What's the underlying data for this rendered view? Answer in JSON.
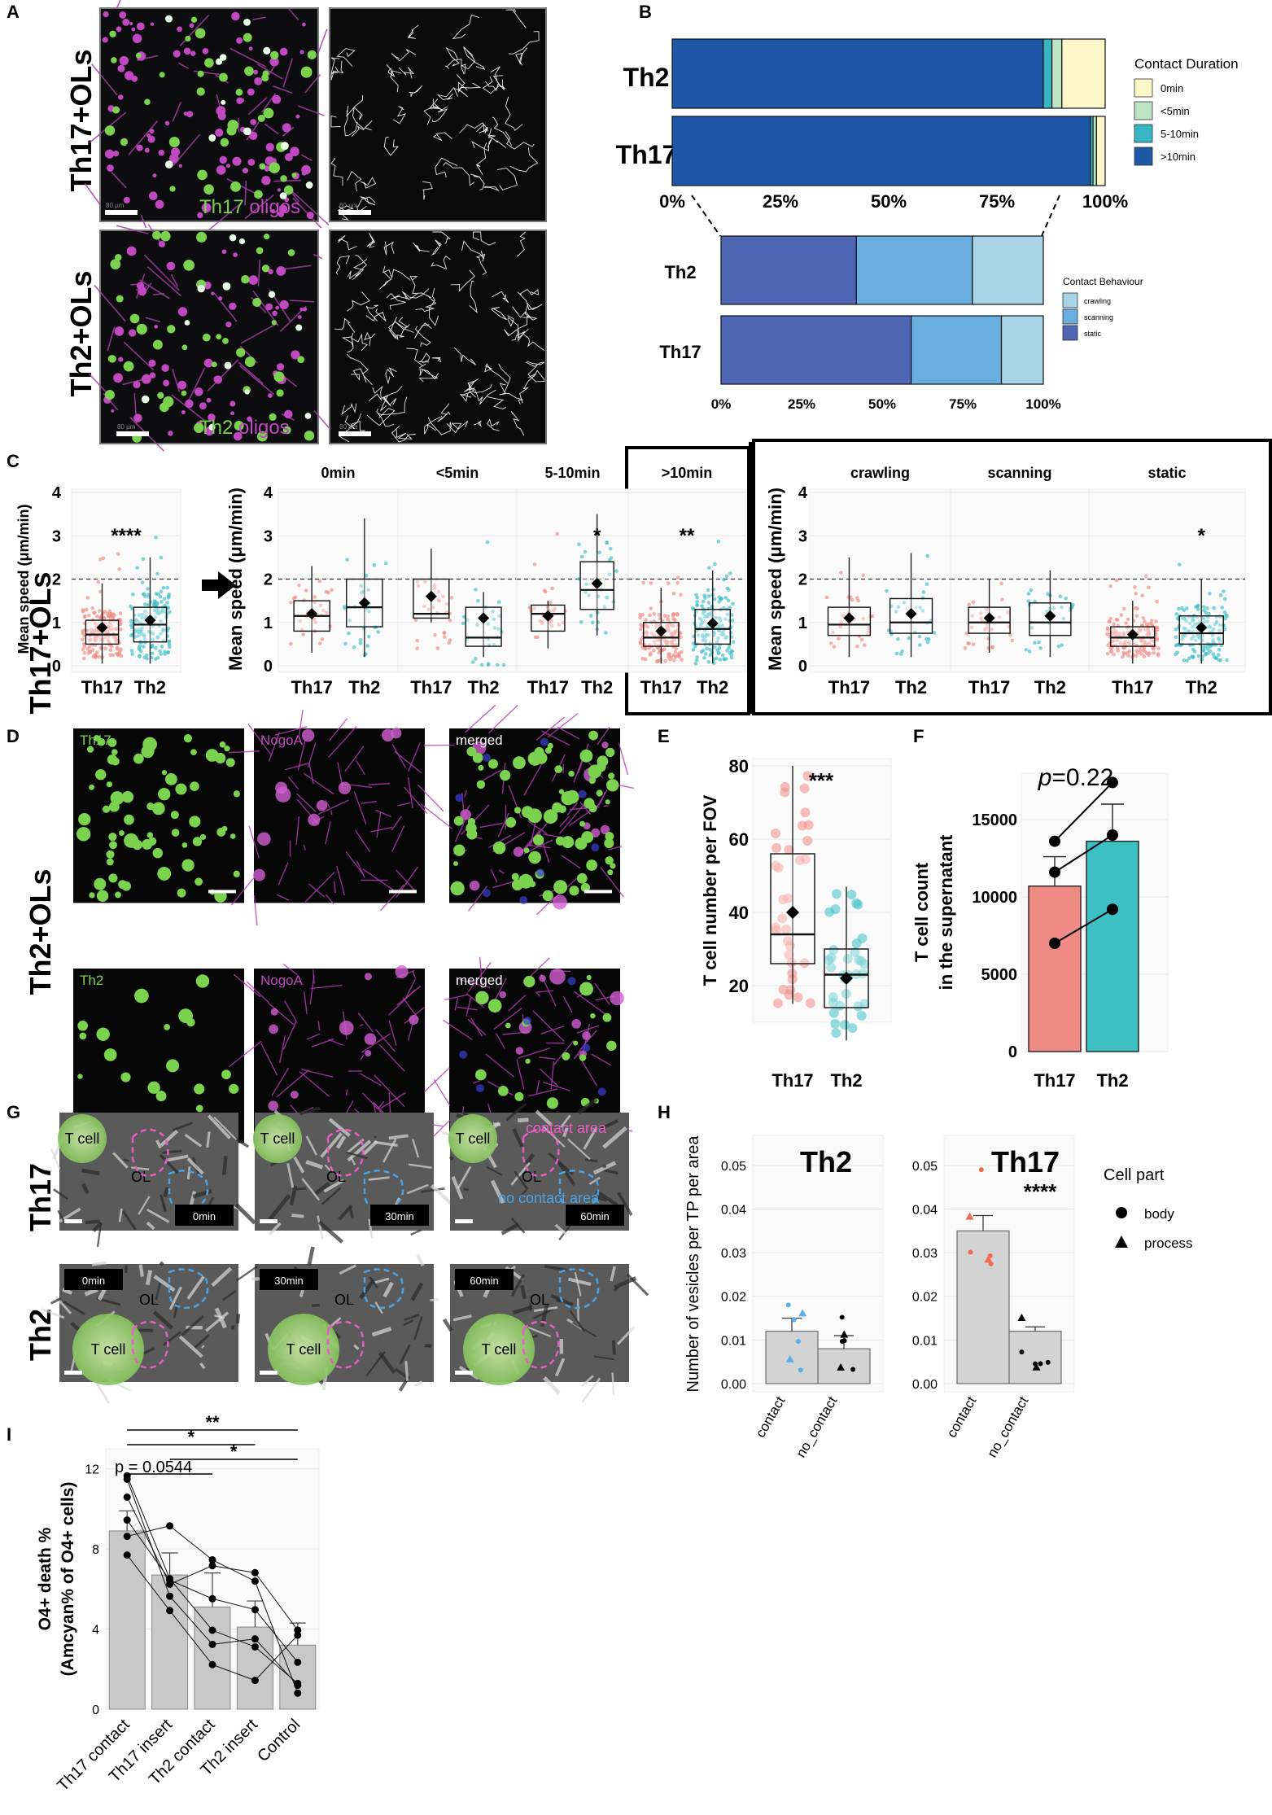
{
  "panel_letters": {
    "A": "A",
    "B": "B",
    "C": "C",
    "D": "D",
    "E": "E",
    "F": "F",
    "G": "G",
    "H": "H",
    "I": "I"
  },
  "panel_a": {
    "row_labels": [
      "Th17+OLs",
      "Th2+OLs"
    ],
    "captions": [
      {
        "cell": "Th17",
        "oligo": " oligos"
      },
      {
        "cell": "Th2",
        "oligo": " oligos"
      }
    ],
    "scalebar_texts": [
      "80 μm",
      "80 μm",
      "80 μm",
      "80 μm"
    ]
  },
  "colors": {
    "th17": "#f08a84",
    "th2": "#3dbfc4",
    "magenta": "#c048c0",
    "green": "#7ad24e",
    "dur0": "#fbf7c8",
    "dur5": "#bfe3c5",
    "dur510": "#38b6c4",
    "dur10": "#1f57a8",
    "crawl": "#a9d3e6",
    "scan": "#6aaee0",
    "static": "#4e66b4"
  },
  "chart_data": [
    {
      "id": "B-duration",
      "type": "bar",
      "orientation": "horizontal-stacked-percent",
      "categories": [
        "Th2",
        "Th17"
      ],
      "series": [
        {
          "name": ">10min",
          "values": [
            85.7,
            96.6
          ]
        },
        {
          "name": "5-10min",
          "values": [
            2.0,
            0.6
          ]
        },
        {
          "name": "<5min",
          "values": [
            2.3,
            0.8
          ]
        },
        {
          "name": "0min",
          "values": [
            10.0,
            2.0
          ]
        }
      ],
      "xticks": [
        "0%",
        "25%",
        "50%",
        "75%",
        "100%"
      ],
      "legend_title": "Contact Duration",
      "legend": [
        "0min",
        "<5min",
        "5-10min",
        ">10min"
      ]
    },
    {
      "id": "B-behaviour",
      "type": "bar",
      "orientation": "horizontal-stacked-percent",
      "categories": [
        "Th2",
        "Th17"
      ],
      "series": [
        {
          "name": "static",
          "values": [
            42,
            59
          ]
        },
        {
          "name": "scanning",
          "values": [
            36,
            28
          ]
        },
        {
          "name": "crawling",
          "values": [
            22,
            13
          ]
        }
      ],
      "xticks": [
        "0%",
        "25%",
        "50%",
        "75%",
        "100%"
      ],
      "legend_title": "Contact Behaviour",
      "legend": [
        "crawling",
        "scanning",
        "static"
      ]
    },
    {
      "id": "C-speed",
      "type": "box",
      "ylabel": "Mean speed (μm/min)",
      "ylim": [
        0,
        4
      ],
      "yticks": [
        "0",
        "1",
        "2",
        "3",
        "4"
      ],
      "reference_line": 2,
      "groups": [
        {
          "facet": "",
          "label": "Th17",
          "q1": 0.5,
          "median": 0.72,
          "q3": 1.05,
          "lo": 0.05,
          "hi": 1.9,
          "mean": 0.88,
          "sig": ""
        },
        {
          "facet": "",
          "label": "Th2",
          "q1": 0.55,
          "median": 0.95,
          "q3": 1.35,
          "lo": 0.05,
          "hi": 2.5,
          "mean": 1.05,
          "sig": "****"
        },
        {
          "facet": "0min",
          "label": "Th17",
          "q1": 0.8,
          "median": 1.15,
          "q3": 1.5,
          "lo": 0.3,
          "hi": 2.3,
          "mean": 1.2,
          "sig": ""
        },
        {
          "facet": "0min",
          "label": "Th2",
          "q1": 0.9,
          "median": 1.35,
          "q3": 2.0,
          "lo": 0.2,
          "hi": 3.4,
          "mean": 1.45,
          "sig": ""
        },
        {
          "facet": "<5min",
          "label": "Th17",
          "q1": 1.1,
          "median": 1.2,
          "q3": 2.0,
          "lo": 1.0,
          "hi": 2.7,
          "mean": 1.6,
          "sig": ""
        },
        {
          "facet": "<5min",
          "label": "Th2",
          "q1": 0.45,
          "median": 0.65,
          "q3": 1.35,
          "lo": 0.2,
          "hi": 1.7,
          "mean": 1.1,
          "sig": ""
        },
        {
          "facet": "5-10min",
          "label": "Th17",
          "q1": 0.8,
          "median": 1.2,
          "q3": 1.4,
          "lo": 0.4,
          "hi": 1.5,
          "mean": 1.15,
          "sig": ""
        },
        {
          "facet": "5-10min",
          "label": "Th2",
          "q1": 1.3,
          "median": 1.75,
          "q3": 2.4,
          "lo": 0.7,
          "hi": 3.5,
          "mean": 1.9,
          "sig": "*"
        },
        {
          "facet": ">10min",
          "label": "Th17",
          "q1": 0.45,
          "median": 0.65,
          "q3": 1.0,
          "lo": 0.05,
          "hi": 1.8,
          "mean": 0.8,
          "sig": ""
        },
        {
          "facet": ">10min",
          "label": "Th2",
          "q1": 0.5,
          "median": 0.85,
          "q3": 1.3,
          "lo": 0.05,
          "hi": 2.2,
          "mean": 0.98,
          "sig": "**"
        },
        {
          "facet": "crawling",
          "label": "Th17",
          "q1": 0.7,
          "median": 0.95,
          "q3": 1.35,
          "lo": 0.2,
          "hi": 2.5,
          "mean": 1.1,
          "sig": ""
        },
        {
          "facet": "crawling",
          "label": "Th2",
          "q1": 0.75,
          "median": 1.0,
          "q3": 1.55,
          "lo": 0.2,
          "hi": 2.6,
          "mean": 1.2,
          "sig": ""
        },
        {
          "facet": "scanning",
          "label": "Th17",
          "q1": 0.75,
          "median": 1.0,
          "q3": 1.35,
          "lo": 0.3,
          "hi": 2.0,
          "mean": 1.1,
          "sig": ""
        },
        {
          "facet": "scanning",
          "label": "Th2",
          "q1": 0.7,
          "median": 1.0,
          "q3": 1.45,
          "lo": 0.2,
          "hi": 2.2,
          "mean": 1.15,
          "sig": ""
        },
        {
          "facet": "static",
          "label": "Th17",
          "q1": 0.45,
          "median": 0.65,
          "q3": 0.9,
          "lo": 0.05,
          "hi": 1.5,
          "mean": 0.72,
          "sig": ""
        },
        {
          "facet": "static",
          "label": "Th2",
          "q1": 0.5,
          "median": 0.75,
          "q3": 1.15,
          "lo": 0.05,
          "hi": 2.0,
          "mean": 0.88,
          "sig": "*"
        }
      ]
    },
    {
      "id": "E-count",
      "type": "box",
      "ylabel": "T cell number per FOV",
      "ylim": [
        10,
        82
      ],
      "yticks": [
        "20",
        "40",
        "60",
        "80"
      ],
      "groups": [
        {
          "label": "Th17",
          "q1": 26,
          "median": 34,
          "q3": 56,
          "lo": 15,
          "hi": 80,
          "mean": 40,
          "sig": "***"
        },
        {
          "label": "Th2",
          "q1": 14,
          "median": 23,
          "q3": 30,
          "lo": 5,
          "hi": 47,
          "mean": 22,
          "sig": ""
        }
      ]
    },
    {
      "id": "F-supernatant",
      "type": "bar",
      "ylabel": "T cell count in the supernatant",
      "ylabel_lines": [
        "T cell count",
        "in the supernatant"
      ],
      "ylim": [
        0,
        18000
      ],
      "yticks": [
        "0",
        "5000",
        "10000",
        "15000"
      ],
      "categories": [
        "Th17",
        "Th2"
      ],
      "values": [
        10700,
        13600
      ],
      "errors": [
        1900,
        2400
      ],
      "points": [
        [
          7000,
          11600,
          13600
        ],
        [
          9200,
          14000,
          17400
        ]
      ],
      "annotation": {
        "p": "p",
        "value": "=0.22"
      }
    },
    {
      "id": "H-vesicles",
      "type": "bar",
      "ylabel": "Number of vesicles per TP per area",
      "ylim": [
        0,
        0.055
      ],
      "yticks": [
        "0.00",
        "0.01",
        "0.02",
        "0.03",
        "0.04",
        "0.05"
      ],
      "facets": [
        {
          "title": "Th2",
          "categories": [
            "contact",
            "no_contact"
          ],
          "values": [
            0.012,
            0.008
          ],
          "errors": [
            0.003,
            0.003
          ],
          "sig": ""
        },
        {
          "title": "Th17",
          "categories": [
            "contact",
            "no_contact"
          ],
          "values": [
            0.035,
            0.012
          ],
          "errors": [
            0.0035,
            0.001
          ],
          "sig": "****"
        }
      ],
      "legend_title": "Cell part",
      "legend": [
        "body",
        "process"
      ]
    },
    {
      "id": "I-death",
      "type": "bar",
      "ylabel_lines": [
        "O4+ death %",
        "(Amcyan% of O4+ cells)"
      ],
      "ylim": [
        0,
        13
      ],
      "yticks": [
        "0",
        "4",
        "8",
        "12"
      ],
      "categories": [
        "Th17 contact",
        "Th17 insert",
        "Th2 contact",
        "Th2 insert",
        "Control"
      ],
      "values": [
        8.9,
        6.7,
        5.1,
        4.1,
        3.2
      ],
      "errors": [
        1.0,
        1.1,
        1.7,
        1.3,
        1.1
      ],
      "comparisons": [
        {
          "from": 0,
          "to": 4,
          "label": "**"
        },
        {
          "from": 0,
          "to": 3,
          "label": "*"
        },
        {
          "from": 1,
          "to": 4,
          "label": "*"
        },
        {
          "from": 0,
          "to": 2,
          "label": "p = 0.0544"
        }
      ]
    }
  ],
  "panel_d": {
    "row_labels": [
      "Th17+OLs",
      "Th2+OLs"
    ],
    "channel_labels": [
      [
        "Th17",
        "NogoA",
        "merged"
      ],
      [
        "Th2",
        "NogoA",
        "merged"
      ]
    ]
  },
  "panel_g": {
    "row_labels": [
      "Th17",
      "Th2"
    ],
    "labels": {
      "tcell": "T cell",
      "ol": "OL",
      "contact": "contact area",
      "nocontact": "no contact area"
    },
    "times": [
      "0min",
      "30min",
      "60min"
    ]
  }
}
